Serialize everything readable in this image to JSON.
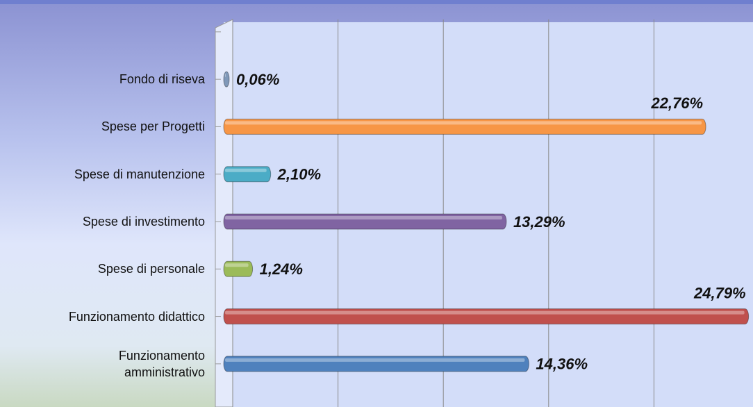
{
  "chart_data": {
    "type": "bar",
    "orientation": "horizontal",
    "categories": [
      "Fondo di riseva",
      "Spese per Progetti",
      "Spese di manutenzione",
      "Spese di investimento",
      "Spese di personale",
      "Funzionamento didattico",
      "Funzionamento amministrativo"
    ],
    "values": [
      0.06,
      22.76,
      2.1,
      13.29,
      1.24,
      24.79,
      14.36
    ],
    "value_labels": [
      "0,06%",
      "22,76%",
      "2,10%",
      "13,29%",
      "1,24%",
      "24,79%",
      "14,36%"
    ],
    "colors": [
      "#7f98b8",
      "#f79646",
      "#4bacc6",
      "#8064a2",
      "#9bbb59",
      "#c0504d",
      "#4f81bd"
    ],
    "xlim": [
      0,
      25
    ],
    "xticks": [
      0,
      5,
      10,
      15,
      20
    ],
    "grid": true
  }
}
